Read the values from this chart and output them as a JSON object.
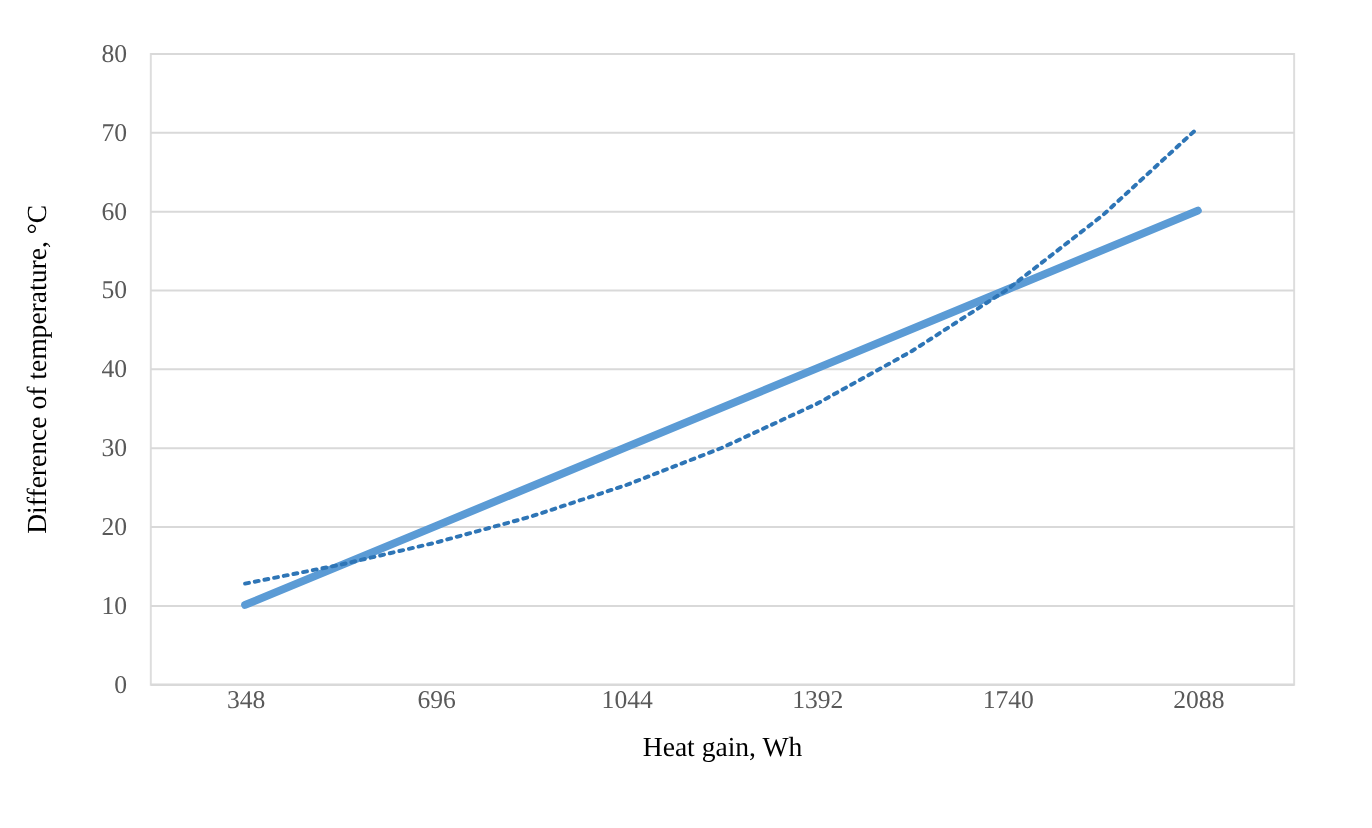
{
  "chart_data": {
    "type": "line",
    "xlabel": "Heat gain,  Wh",
    "ylabel": "Difference  of temperature, °C",
    "x": [
      348,
      696,
      1044,
      1392,
      1740,
      2088
    ],
    "xlim": [
      174,
      2262
    ],
    "xticks": [
      348,
      696,
      1044,
      1392,
      1740,
      2088
    ],
    "ylim": [
      0,
      80
    ],
    "yticks": [
      0,
      10,
      20,
      30,
      40,
      50,
      60,
      70,
      80
    ],
    "grid": "y",
    "marker": "none",
    "series": [
      {
        "color": "#5b9bd5",
        "values": [
          10,
          20,
          30,
          40,
          50,
          60
        ],
        "line_style": "solid"
      },
      {
        "type": "line",
        "color": "#2e75b6",
        "line_style": "dotted",
        "x": [
          348,
          522,
          696,
          870,
          1044,
          1218,
          1392,
          1566,
          1740,
          1914,
          2088
        ],
        "values": [
          12.7,
          15.1,
          17.9,
          21.2,
          25.2,
          29.9,
          35.5,
          42.2,
          50.0,
          59.4,
          70.5
        ]
      }
    ]
  }
}
